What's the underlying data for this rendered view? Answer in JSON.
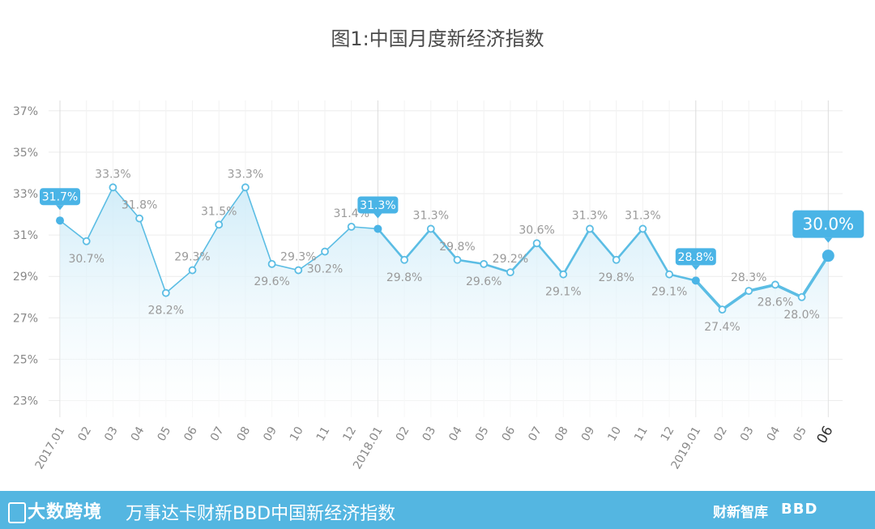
{
  "title": "图1:中国月度新经济指数",
  "chart_data": {
    "type": "area",
    "categories": [
      "2017.01",
      "02",
      "03",
      "04",
      "05",
      "06",
      "07",
      "08",
      "09",
      "10",
      "11",
      "12",
      "2018.01",
      "02",
      "03",
      "04",
      "05",
      "06",
      "07",
      "08",
      "09",
      "10",
      "11",
      "12",
      "2019.01",
      "02",
      "03",
      "04",
      "05",
      "06"
    ],
    "series": [
      {
        "values": [
          31.7,
          30.7,
          33.3,
          31.8,
          28.2,
          29.3,
          31.5,
          33.3,
          29.6,
          29.3,
          30.2,
          31.4,
          31.3,
          29.8,
          31.3,
          29.8,
          29.6,
          29.2,
          30.6,
          29.1,
          31.3,
          29.8,
          31.3,
          29.1,
          28.8,
          27.4,
          28.3,
          28.6,
          28.0,
          30.0
        ]
      }
    ],
    "data_labels": [
      "31.7%",
      "30.7%",
      "33.3%",
      "31.8%",
      "28.2%",
      "29.3%",
      "31.5%",
      "33.3%",
      "29.6%",
      "29.3%",
      "30.2%",
      "31.4%",
      "31.3%",
      "29.8%",
      "31.3%",
      "29.8%",
      "29.6%",
      "29.2%",
      "30.6%",
      "29.1%",
      "31.3%",
      "29.8%",
      "31.3%",
      "29.1%",
      "28.8%",
      "27.4%",
      "28.3%",
      "28.6%",
      "28.0%",
      "30.0%"
    ],
    "highlighted_indices": [
      0,
      12,
      24,
      29
    ],
    "y_ticks": [
      "23%",
      "25%",
      "27%",
      "29%",
      "31%",
      "33%",
      "35%",
      "37%"
    ],
    "ylim": [
      22.2,
      37.5
    ],
    "grid": true,
    "colors": {
      "line": "#5bbde4",
      "fill_top": "#cdebf8",
      "fill_bottom": "#ffffff",
      "callout": "#4ab4e6",
      "label": "#9a9a9a",
      "axis_text": "#888888",
      "grid": "#ececec"
    }
  },
  "footer": {
    "logo_text": "大数跨境",
    "title": "万事达卡财新BBD中国新经济指数",
    "partner_a": "财新智库",
    "partner_b": "BBD"
  }
}
